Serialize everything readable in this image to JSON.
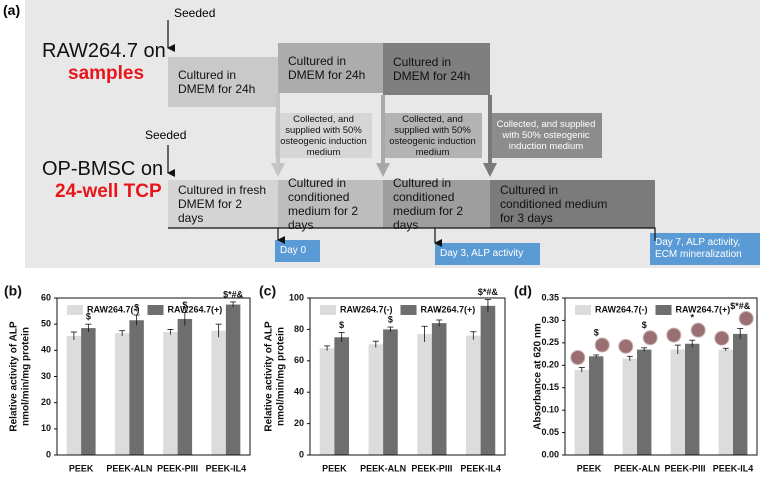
{
  "diagram": {
    "label": "(a)",
    "seeded_top": "Seeded",
    "raw_title": "RAW264.7 on",
    "raw_subtitle": "samples",
    "raw_steps": [
      "Cultured in DMEM for 24h",
      "Cultured in DMEM for 24h",
      "Cultured in DMEM for 24h"
    ],
    "transfer_steps": [
      "Collected, and supplied with 50% osteogenic induction medium",
      "Collected, and supplied with 50% osteogenic induction medium",
      "Collected, and supplied with 50% osteogenic induction medium"
    ],
    "seeded_bottom": "Seeded",
    "bmsc_title": "OP-BMSC on",
    "bmsc_subtitle": "24-well TCP",
    "bmsc_steps": [
      "Cultured in fresh DMEM for 2 days",
      "Cultured in conditioned medium for 2 days",
      "Cultured in conditioned medium for 2 days",
      "Cultured in conditioned medium for 3 days"
    ],
    "timepoints": [
      "Day 0",
      "Day 3, ALP activity",
      "Day 7, ALP activity, ECM mineralization"
    ]
  },
  "chart_data": [
    {
      "type": "bar",
      "label": "(b)",
      "ylabel": [
        "Relative activity of ALP",
        "nmol/min/mg protein"
      ],
      "categories": [
        "PEEK",
        "PEEK-ALN",
        "PEEK-PIII",
        "PEEK-IL4"
      ],
      "series": [
        {
          "name": "RAW264.7(-)",
          "color": "#dcdcdc",
          "values": [
            45.5,
            46.5,
            47,
            47.5
          ],
          "errors": [
            1.5,
            1,
            1,
            2.5
          ]
        },
        {
          "name": "RAW264.7(+)",
          "color": "#6e6e6e",
          "values": [
            48.5,
            51.5,
            52,
            57.5
          ],
          "errors": [
            1.5,
            2,
            2.5,
            1
          ],
          "annotations": [
            "$",
            "$",
            "$",
            "$*#&"
          ]
        }
      ],
      "ylim": [
        0,
        60
      ],
      "yticks": [
        0,
        10,
        20,
        30,
        40,
        50,
        60
      ],
      "legend": "upper left"
    },
    {
      "type": "bar",
      "label": "(c)",
      "ylabel": [
        "Relative activity of ALP",
        "nmol/min/mg protein"
      ],
      "categories": [
        "PEEK",
        "PEEK-ALN",
        "PEEK-PIII",
        "PEEK-IL4"
      ],
      "series": [
        {
          "name": "RAW264.7(-)",
          "color": "#dcdcdc",
          "values": [
            68,
            70.5,
            77,
            76
          ],
          "errors": [
            1.5,
            2,
            5,
            2.5
          ]
        },
        {
          "name": "RAW264.7(+)",
          "color": "#6e6e6e",
          "values": [
            75,
            80,
            84,
            95
          ],
          "errors": [
            3,
            1.5,
            2,
            4
          ],
          "annotations": [
            "$",
            "$",
            "*",
            "$*#&"
          ]
        }
      ],
      "ylim": [
        0,
        100
      ],
      "yticks": [
        0,
        20,
        40,
        60,
        80,
        100
      ],
      "legend": "upper left"
    },
    {
      "type": "bar",
      "label": "(d)",
      "ylabel": [
        "Absorbance at 620 nm"
      ],
      "categories": [
        "PEEK",
        "PEEK-ALN",
        "PEEK-PIII",
        "PEEK-IL4"
      ],
      "series": [
        {
          "name": "RAW264.7(-)",
          "color": "#dcdcdc",
          "values": [
            0.19,
            0.215,
            0.235,
            0.235
          ],
          "errors": [
            0.005,
            0.005,
            0.01,
            0.003
          ]
        },
        {
          "name": "RAW264.7(+)",
          "color": "#6e6e6e",
          "values": [
            0.22,
            0.235,
            0.248,
            0.27
          ],
          "errors": [
            0.003,
            0.004,
            0.008,
            0.012
          ],
          "annotations": [
            "$",
            "$",
            "*",
            "$*#&"
          ]
        }
      ],
      "ylim": [
        0,
        0.35
      ],
      "yticks": [
        {
          "value": 0,
          "label": "0.00"
        },
        {
          "value": 0.05,
          "label": "0.05"
        },
        {
          "value": 0.1,
          "label": "0.10"
        },
        {
          "value": 0.15,
          "label": "0.15"
        },
        {
          "value": 0.2,
          "label": "0.20"
        },
        {
          "value": 0.25,
          "label": "0.25"
        },
        {
          "value": 0.3,
          "label": "0.30"
        },
        {
          "value": 0.35,
          "label": "0.35"
        }
      ],
      "legend": "upper left"
    }
  ]
}
